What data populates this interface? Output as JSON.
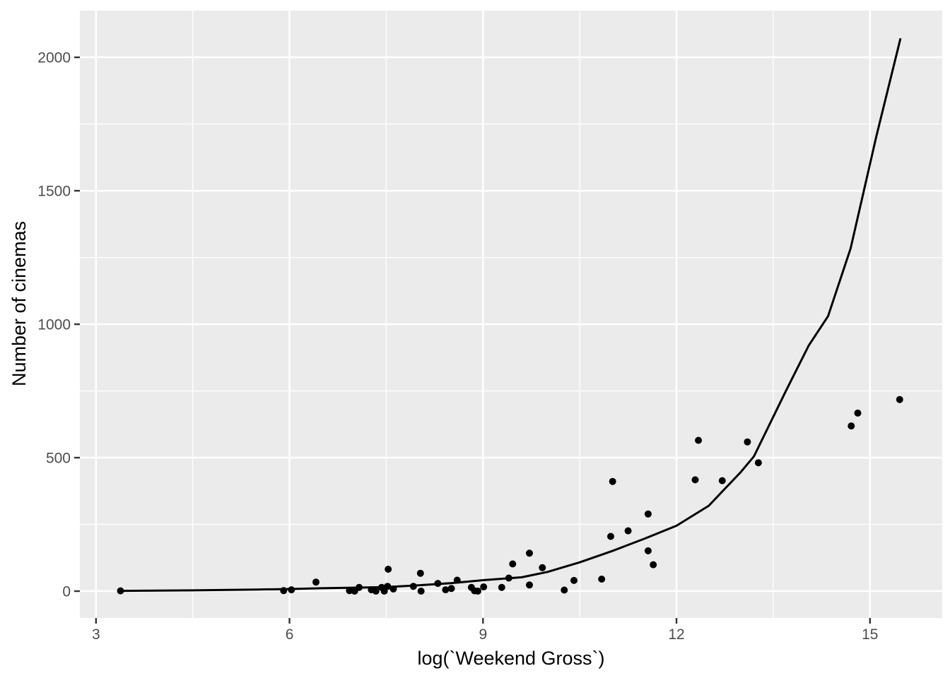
{
  "chart_data": {
    "type": "scatter",
    "title": "",
    "xlabel": "log(`Weekend Gross`)",
    "ylabel": "Number of cinemas",
    "x_ticks": [
      3,
      6,
      9,
      12,
      15
    ],
    "y_ticks": [
      0,
      500,
      1000,
      1500,
      2000
    ],
    "x_minor_ticks": [
      4.5,
      7.5,
      10.5,
      13.5
    ],
    "y_minor_ticks": [
      250,
      750,
      1250,
      1750
    ],
    "xlim": [
      2.75,
      16.12
    ],
    "ylim": [
      -100.5,
      2175
    ],
    "grid": true,
    "legend_position": "none",
    "points": [
      [
        3.38,
        1
      ],
      [
        5.91,
        2
      ],
      [
        6.03,
        5
      ],
      [
        6.41,
        34
      ],
      [
        6.93,
        2
      ],
      [
        7.01,
        0
      ],
      [
        7.08,
        14
      ],
      [
        7.27,
        5
      ],
      [
        7.34,
        0
      ],
      [
        7.43,
        14
      ],
      [
        7.47,
        0
      ],
      [
        7.52,
        18
      ],
      [
        7.53,
        82
      ],
      [
        7.61,
        8
      ],
      [
        7.92,
        18
      ],
      [
        8.03,
        67
      ],
      [
        8.04,
        0
      ],
      [
        8.3,
        29
      ],
      [
        8.42,
        5
      ],
      [
        8.51,
        10
      ],
      [
        8.6,
        41
      ],
      [
        8.82,
        14
      ],
      [
        8.87,
        1
      ],
      [
        8.92,
        0
      ],
      [
        9.01,
        16
      ],
      [
        9.29,
        14
      ],
      [
        9.4,
        49
      ],
      [
        9.46,
        102
      ],
      [
        9.72,
        142
      ],
      [
        9.72,
        23
      ],
      [
        9.92,
        88
      ],
      [
        10.26,
        4
      ],
      [
        10.41,
        40
      ],
      [
        10.84,
        45
      ],
      [
        10.98,
        205
      ],
      [
        11.01,
        411
      ],
      [
        11.25,
        226
      ],
      [
        11.56,
        289
      ],
      [
        11.56,
        151
      ],
      [
        11.64,
        99
      ],
      [
        12.29,
        417
      ],
      [
        12.34,
        565
      ],
      [
        12.71,
        414
      ],
      [
        13.1,
        559
      ],
      [
        13.27,
        481
      ],
      [
        14.71,
        619
      ],
      [
        14.81,
        667
      ],
      [
        15.46,
        718
      ]
    ],
    "smooth_line": [
      [
        3.38,
        1
      ],
      [
        4.5,
        3
      ],
      [
        5.5,
        6
      ],
      [
        6.0,
        8
      ],
      [
        6.5,
        11
      ],
      [
        7.0,
        13
      ],
      [
        7.5,
        15
      ],
      [
        8.0,
        22
      ],
      [
        8.5,
        30
      ],
      [
        9.0,
        41
      ],
      [
        9.6,
        52
      ],
      [
        10.0,
        72
      ],
      [
        10.5,
        108
      ],
      [
        11.0,
        150
      ],
      [
        11.5,
        196
      ],
      [
        12.0,
        245
      ],
      [
        12.5,
        320
      ],
      [
        13.0,
        447
      ],
      [
        13.2,
        505
      ],
      [
        13.7,
        752
      ],
      [
        14.05,
        920
      ],
      [
        14.35,
        1030
      ],
      [
        14.7,
        1284
      ],
      [
        15.1,
        1705
      ],
      [
        15.47,
        2068
      ]
    ],
    "colors": {
      "page_background": "#FFFFFF",
      "panel_background": "#EBEBEB",
      "gridline": "#FFFFFF",
      "point": "#000000",
      "line": "#000000",
      "tick_label": "#4D4D4D",
      "axis_title": "#000000",
      "tick_mark": "#333333"
    }
  }
}
